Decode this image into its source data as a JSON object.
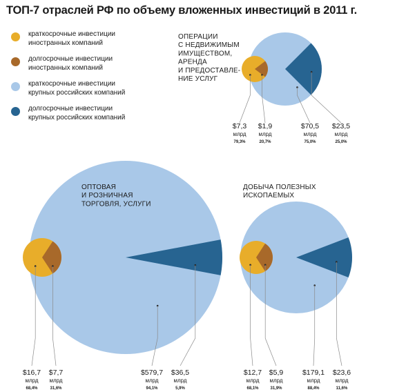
{
  "title": "ТОП-7 отраслей РФ по объему вложенных инвестиций в 2011 г.",
  "colors": {
    "short_foreign": "#e8ad2a",
    "long_foreign": "#a8692a",
    "short_russian": "#a9c8e8",
    "long_russian": "#276491",
    "leader": "#8a8a8a"
  },
  "legend": [
    {
      "line1": "краткосрочные инвестиции",
      "line2": "иностранных компаний",
      "color": "#e8ad2a"
    },
    {
      "line1": "долгосрочные инвестиции",
      "line2": "иностранных компаний",
      "color": "#a8692a"
    },
    {
      "line1": "краткосрочные инвестиции",
      "line2": "крупных российских компаний",
      "color": "#a9c8e8"
    },
    {
      "line1": "долгосрочные инвестиции",
      "line2": "крупных российских компаний",
      "color": "#276491"
    }
  ],
  "chart_data": [
    {
      "type": "pie",
      "category": [
        "ОПЕРАЦИИ",
        "С НЕДВИЖИМЫМ",
        "ИМУЩЕСТВОМ,",
        "АРЕНДА",
        "И ПРЕДОСТАВЛЕ-",
        "НИЕ УСЛУГ"
      ],
      "foreign": {
        "short": {
          "value": 7.3,
          "label": "$7,3",
          "unit": "млрд",
          "pct": "79,3%"
        },
        "long": {
          "value": 1.9,
          "label": "$1,9",
          "unit": "млрд",
          "pct": "20,7%"
        }
      },
      "russian": {
        "short": {
          "value": 70.5,
          "label": "$70,5",
          "unit": "млрд",
          "pct": "75,0%"
        },
        "long": {
          "value": 23.5,
          "label": "$23,5",
          "unit": "млрд",
          "pct": "25,0%"
        }
      }
    },
    {
      "type": "pie",
      "category": [
        "ОПТОВАЯ",
        "И РОЗНИЧНАЯ",
        "ТОРГОВЛЯ, УСЛУГИ"
      ],
      "foreign": {
        "short": {
          "value": 16.7,
          "label": "$16,7",
          "unit": "млрд",
          "pct": "68,4%"
        },
        "long": {
          "value": 7.7,
          "label": "$7,7",
          "unit": "млрд",
          "pct": "31,6%"
        }
      },
      "russian": {
        "short": {
          "value": 579.7,
          "label": "$579,7",
          "unit": "млрд",
          "pct": "94,1%"
        },
        "long": {
          "value": 36.5,
          "label": "$36,5",
          "unit": "млрд",
          "pct": "5,9%"
        }
      }
    },
    {
      "type": "pie",
      "category": [
        "ДОБЫЧА ПОЛЕЗНЫХ",
        "ИСКОПАЕМЫХ"
      ],
      "foreign": {
        "short": {
          "value": 12.7,
          "label": "$12,7",
          "unit": "млрд",
          "pct": "68,1%"
        },
        "long": {
          "value": 5.9,
          "label": "$5,9",
          "unit": "млрд",
          "pct": "31,9%"
        }
      },
      "russian": {
        "short": {
          "value": 179.1,
          "label": "$179,1",
          "unit": "млрд",
          "pct": "88,4%"
        },
        "long": {
          "value": 23.6,
          "label": "$23,6",
          "unit": "млрд",
          "pct": "11,6%"
        }
      }
    }
  ]
}
